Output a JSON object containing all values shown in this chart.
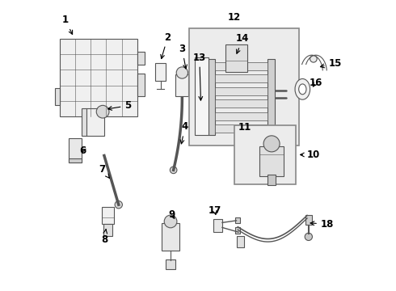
{
  "background_color": "#ffffff",
  "line_color": "#555555",
  "label_fontsize": 8.5,
  "figsize": [
    4.9,
    3.6
  ],
  "dpi": 100
}
